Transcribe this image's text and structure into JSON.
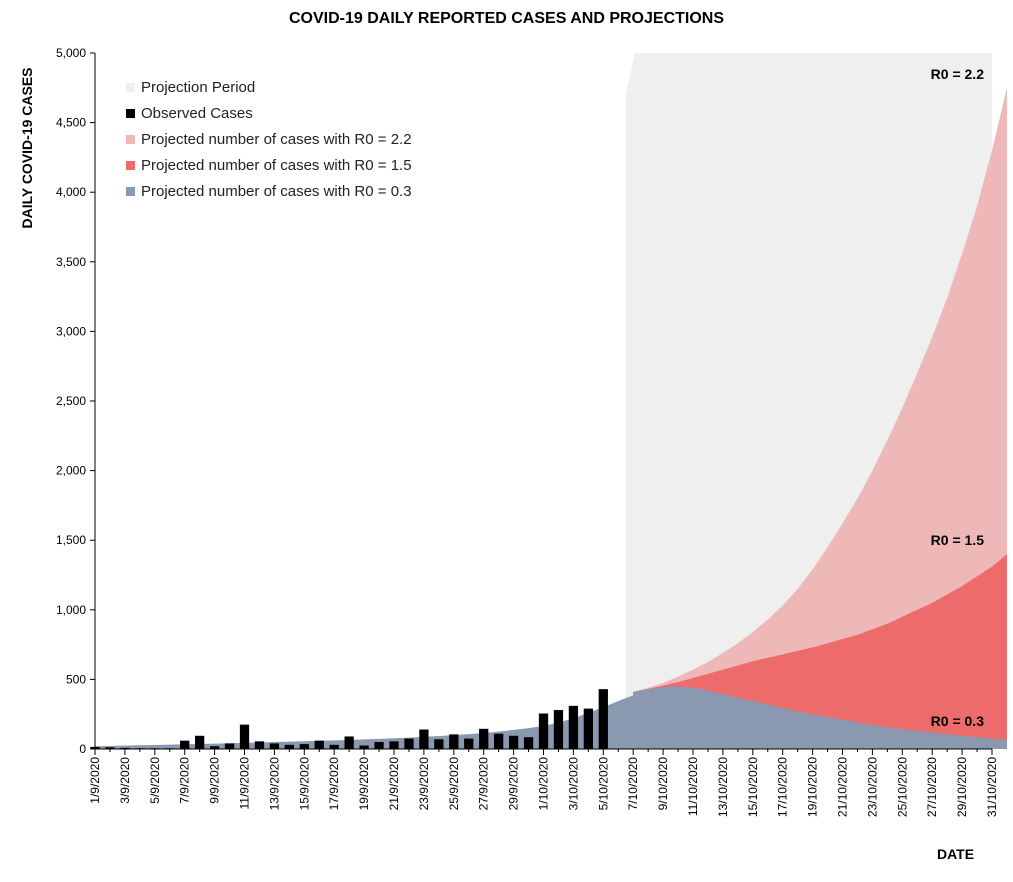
{
  "chart_data": {
    "type": "area",
    "title": "COVID-19 DAILY REPORTED CASES AND PROJECTIONS",
    "ylabel": "DAILY COVID-19 CASES",
    "xlabel": "DATE",
    "ylim": [
      0,
      5000
    ],
    "yticks": [
      "0",
      "500",
      "1,000",
      "1,500",
      "2,000",
      "2,500",
      "3,000",
      "3,500",
      "4,000",
      "4,500",
      "5,000"
    ],
    "ytick_values": [
      0,
      500,
      1000,
      1500,
      2000,
      2500,
      3000,
      3500,
      4000,
      4500,
      5000
    ],
    "x_tick_labels": [
      "1/9/2020",
      "3/9/2020",
      "5/9/2020",
      "7/9/2020",
      "9/9/2020",
      "11/9/2020",
      "13/9/2020",
      "15/9/2020",
      "17/9/2020",
      "19/9/2020",
      "21/9/2020",
      "23/9/2020",
      "25/9/2020",
      "27/9/2020",
      "29/9/2020",
      "1/10/2020",
      "3/10/2020",
      "5/10/2020",
      "7/10/2020",
      "9/10/2020",
      "11/10/2020",
      "13/10/2020",
      "15/10/2020",
      "17/10/2020",
      "19/10/2020",
      "21/10/2020",
      "23/10/2020",
      "25/10/2020",
      "27/10/2020",
      "29/10/2020",
      "31/10/2020"
    ],
    "day_count": 61,
    "projection_start_day": 36,
    "legend": [
      {
        "label": "Projection Period",
        "color": "#efefef"
      },
      {
        "label": "Observed Cases",
        "color": "#000000"
      },
      {
        "label": "Projected number of cases with R0 = 2.2",
        "color": "#eeb8b8"
      },
      {
        "label": "Projected number of cases with R0 = 1.5",
        "color": "#ee6b6b"
      },
      {
        "label": "Projected number of cases with R0 = 0.3",
        "color": "#8a99b0"
      }
    ],
    "series": [
      {
        "name": "Observed Cases",
        "type": "bar",
        "start_day": 0,
        "color": "#000000",
        "values": [
          15,
          12,
          8,
          5,
          5,
          5,
          60,
          95,
          20,
          40,
          175,
          55,
          40,
          30,
          35,
          60,
          30,
          90,
          25,
          50,
          55,
          75,
          140,
          70,
          105,
          75,
          145,
          110,
          95,
          85,
          255,
          280,
          310,
          290,
          430
        ]
      },
      {
        "name": "Baseline trend",
        "type": "area",
        "start_day": 0,
        "color": "#8a99b0",
        "values": [
          20,
          22,
          25,
          27,
          29,
          31,
          34,
          36,
          39,
          41,
          44,
          47,
          50,
          53,
          56,
          59,
          62,
          65,
          69,
          73,
          77,
          82,
          87,
          93,
          100,
          107,
          115,
          125,
          137,
          150,
          165,
          190,
          220,
          260,
          300,
          345,
          385
        ]
      },
      {
        "name": "Projected number of cases with R0 = 2.2",
        "type": "area",
        "start_day": 36,
        "color": "#eeb8b8",
        "values": [
          410,
          440,
          475,
          520,
          570,
          625,
          690,
          760,
          840,
          930,
          1030,
          1150,
          1290,
          1450,
          1620,
          1800,
          2000,
          2220,
          2450,
          2700,
          2960,
          3240,
          3560,
          3900,
          4300,
          4750
        ]
      },
      {
        "name": "Projected number of cases with R0 = 1.5",
        "type": "area",
        "start_day": 36,
        "color": "#ee6b6b",
        "values": [
          410,
          432,
          455,
          480,
          510,
          540,
          570,
          600,
          630,
          655,
          680,
          705,
          730,
          760,
          790,
          820,
          860,
          900,
          950,
          1000,
          1050,
          1110,
          1170,
          1240,
          1310,
          1400
        ]
      },
      {
        "name": "Projected number of cases with R0 = 0.3",
        "type": "area",
        "start_day": 36,
        "color": "#8a99b0",
        "values": [
          410,
          430,
          445,
          450,
          440,
          420,
          395,
          370,
          345,
          320,
          295,
          270,
          250,
          230,
          210,
          190,
          172,
          157,
          143,
          130,
          118,
          106,
          95,
          85,
          75,
          65
        ]
      }
    ],
    "annotations": [
      {
        "text": "R0 = 2.2",
        "day": 60,
        "value": 4850
      },
      {
        "text": "R0 = 1.5",
        "day": 60,
        "value": 1500
      },
      {
        "text": "R0 = 0.3",
        "day": 60,
        "value": 200
      }
    ]
  }
}
